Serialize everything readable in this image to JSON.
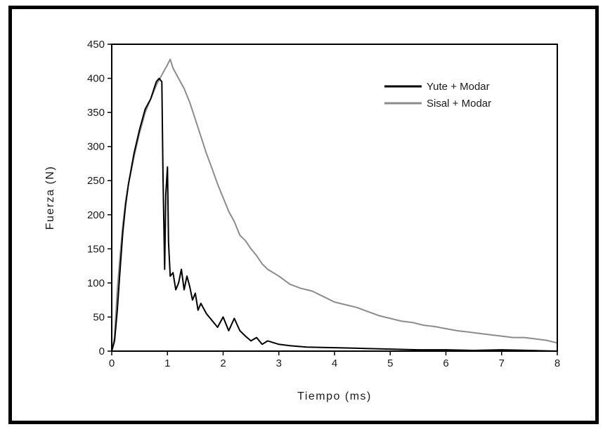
{
  "chart_data": {
    "type": "line",
    "title": "",
    "xlabel": "Tiempo (ms)",
    "ylabel": "Fuerza (N)",
    "xlim": [
      0,
      8
    ],
    "ylim": [
      0,
      450
    ],
    "x_ticks": [
      0,
      1,
      2,
      3,
      4,
      5,
      6,
      7,
      8
    ],
    "y_ticks": [
      0,
      50,
      100,
      150,
      200,
      250,
      300,
      350,
      400,
      450
    ],
    "grid": false,
    "legend_position": "top-right",
    "series": [
      {
        "name": "Yute + Modar",
        "color": "#000000",
        "x": [
          0,
          0.05,
          0.1,
          0.15,
          0.2,
          0.25,
          0.3,
          0.4,
          0.5,
          0.6,
          0.7,
          0.8,
          0.85,
          0.9,
          0.92,
          0.95,
          0.97,
          1.0,
          1.02,
          1.05,
          1.1,
          1.15,
          1.2,
          1.25,
          1.3,
          1.35,
          1.4,
          1.45,
          1.5,
          1.55,
          1.6,
          1.7,
          1.8,
          1.9,
          2.0,
          2.1,
          2.2,
          2.3,
          2.4,
          2.5,
          2.6,
          2.7,
          2.8,
          3.0,
          3.2,
          3.5,
          4.0,
          4.5,
          5.0,
          5.5,
          6.0,
          6.5,
          7.0,
          7.5,
          8.0
        ],
        "y": [
          0,
          15,
          60,
          120,
          175,
          215,
          245,
          290,
          325,
          355,
          370,
          395,
          400,
          395,
          260,
          120,
          230,
          270,
          160,
          110,
          115,
          90,
          100,
          120,
          90,
          110,
          95,
          75,
          85,
          60,
          70,
          55,
          45,
          35,
          50,
          30,
          48,
          30,
          22,
          15,
          20,
          10,
          15,
          10,
          8,
          6,
          5,
          4,
          3,
          2,
          2,
          1,
          2,
          1,
          0
        ]
      },
      {
        "name": "Sisal + Modar",
        "color": "#8c8c8c",
        "x": [
          0,
          0.05,
          0.1,
          0.15,
          0.2,
          0.25,
          0.3,
          0.4,
          0.5,
          0.6,
          0.7,
          0.8,
          0.9,
          1.0,
          1.05,
          1.1,
          1.2,
          1.3,
          1.4,
          1.5,
          1.6,
          1.7,
          1.8,
          1.9,
          2.0,
          2.1,
          2.2,
          2.3,
          2.4,
          2.5,
          2.6,
          2.7,
          2.8,
          3.0,
          3.2,
          3.4,
          3.6,
          3.8,
          4.0,
          4.2,
          4.4,
          4.6,
          4.8,
          5.0,
          5.2,
          5.4,
          5.6,
          5.8,
          6.0,
          6.2,
          6.4,
          6.6,
          6.8,
          7.0,
          7.2,
          7.4,
          7.6,
          7.8,
          8.0
        ],
        "y": [
          0,
          20,
          90,
          140,
          185,
          220,
          245,
          285,
          320,
          350,
          370,
          390,
          405,
          420,
          428,
          415,
          400,
          385,
          365,
          340,
          315,
          290,
          268,
          245,
          225,
          205,
          190,
          170,
          162,
          150,
          140,
          128,
          120,
          110,
          98,
          92,
          88,
          80,
          72,
          68,
          64,
          58,
          52,
          48,
          44,
          42,
          38,
          36,
          33,
          30,
          28,
          26,
          24,
          22,
          20,
          20,
          18,
          16,
          12
        ]
      }
    ]
  }
}
